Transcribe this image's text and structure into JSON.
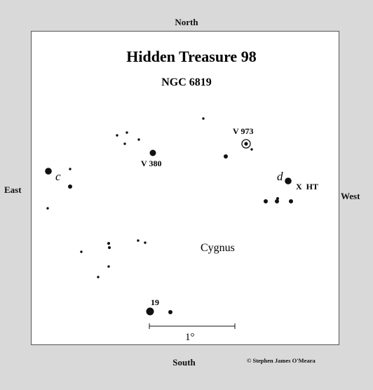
{
  "directions": {
    "north": "North",
    "south": "South",
    "east": "East",
    "west": "West"
  },
  "map": {
    "title": "Hidden Treasure 98",
    "subtitle": "NGC 6819",
    "constellation": "Cygnus",
    "scale_label": "1°",
    "copyright": "© Stephen James O'Meara"
  },
  "labels": {
    "v380": "V 380",
    "v973": "V 973",
    "c": "c",
    "d": "d",
    "xht": "X  HT",
    "star19": "19"
  }
}
